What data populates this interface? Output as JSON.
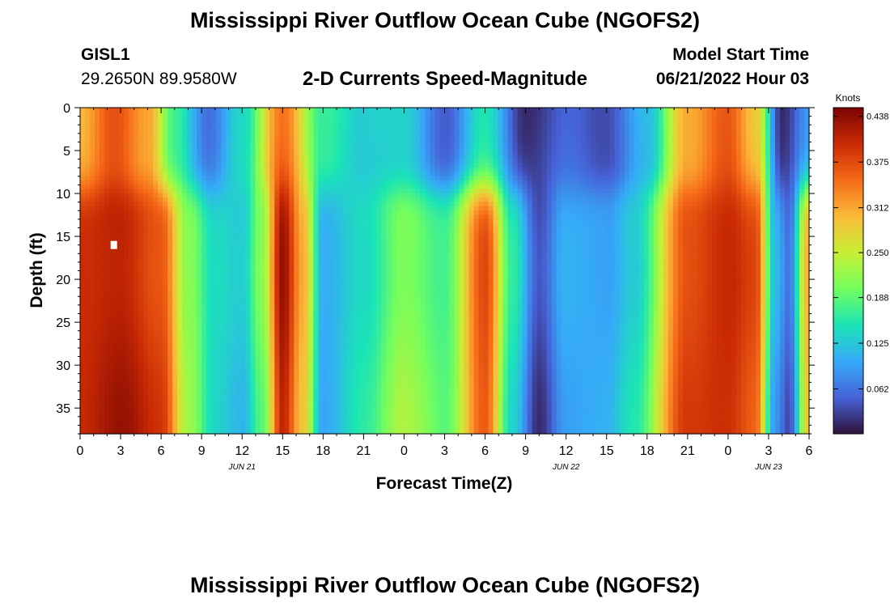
{
  "page": {
    "title_top": "Mississippi River Outflow Ocean Cube (NGOFS2)",
    "title_bottom": "Mississippi River Outflow Ocean Cube (NGOFS2)",
    "station": "GISL1",
    "coordinates": "29.2650N  89.9580W",
    "subtitle": "2-D Currents Speed-Magnitude",
    "model_start_label": "Model Start Time",
    "model_start_value": "06/21/2022 Hour 03"
  },
  "chart_data": {
    "type": "heatmap",
    "xlabel": "Forecast Time(Z)",
    "ylabel": "Depth (ft)",
    "x_ticks": [
      "0",
      "3",
      "6",
      "9",
      "12",
      "15",
      "18",
      "21",
      "0",
      "3",
      "6",
      "9",
      "12",
      "15",
      "18",
      "21",
      "0",
      "3",
      "6"
    ],
    "x_range_hours": [
      0,
      54
    ],
    "date_labels": [
      {
        "label": "JUN 21",
        "hour": 12
      },
      {
        "label": "JUN 22",
        "hour": 36
      },
      {
        "label": "JUN 23",
        "hour": 51
      }
    ],
    "y_ticks": [
      0,
      5,
      10,
      15,
      20,
      25,
      30,
      35
    ],
    "ylim": [
      0,
      38
    ],
    "y_inverted": true,
    "colorbar": {
      "title": "Knots",
      "ticks": [
        "0.438",
        "0.375",
        "0.312",
        "0.250",
        "0.188",
        "0.125",
        "0.062"
      ],
      "range": [
        0,
        0.45
      ],
      "colors": [
        "#30123b",
        "#4662d7",
        "#36aaf9",
        "#1ae4b6",
        "#72fe5e",
        "#c8ef34",
        "#faba39",
        "#f66b19",
        "#ca2a04",
        "#7a0403"
      ]
    },
    "fields": {
      "comment_free": true,
      "surface": [
        [
          0,
          0.3
        ],
        [
          2.5,
          0.36
        ],
        [
          5,
          0.3
        ],
        [
          7,
          0.16
        ],
        [
          9.5,
          0.06
        ],
        [
          12,
          0.15
        ],
        [
          15,
          0.36
        ],
        [
          18,
          0.17
        ],
        [
          21,
          0.12
        ],
        [
          24,
          0.12
        ],
        [
          27,
          0.04
        ],
        [
          30,
          0.16
        ],
        [
          33,
          0.03
        ],
        [
          36,
          0.06
        ],
        [
          39,
          0.03
        ],
        [
          42,
          0.1
        ],
        [
          45,
          0.3
        ],
        [
          48,
          0.37
        ],
        [
          50,
          0.3
        ],
        [
          52,
          0.03
        ],
        [
          54,
          0.1
        ]
      ],
      "bottom": [
        [
          0,
          0.4
        ],
        [
          3,
          0.42
        ],
        [
          6,
          0.38
        ],
        [
          8,
          0.22
        ],
        [
          10,
          0.14
        ],
        [
          12,
          0.12
        ],
        [
          13.5,
          0.2
        ],
        [
          15,
          0.42
        ],
        [
          16.5,
          0.3
        ],
        [
          18,
          0.1
        ],
        [
          21,
          0.15
        ],
        [
          24,
          0.22
        ],
        [
          27,
          0.18
        ],
        [
          30,
          0.37
        ],
        [
          32,
          0.15
        ],
        [
          34,
          0.03
        ],
        [
          36,
          0.1
        ],
        [
          39,
          0.1
        ],
        [
          41,
          0.14
        ],
        [
          45,
          0.38
        ],
        [
          48,
          0.4
        ],
        [
          50,
          0.37
        ],
        [
          51.5,
          0.1
        ],
        [
          52.5,
          0.05
        ],
        [
          54,
          0.3
        ]
      ]
    },
    "marker": {
      "hour": 2.5,
      "depth": 16
    }
  }
}
